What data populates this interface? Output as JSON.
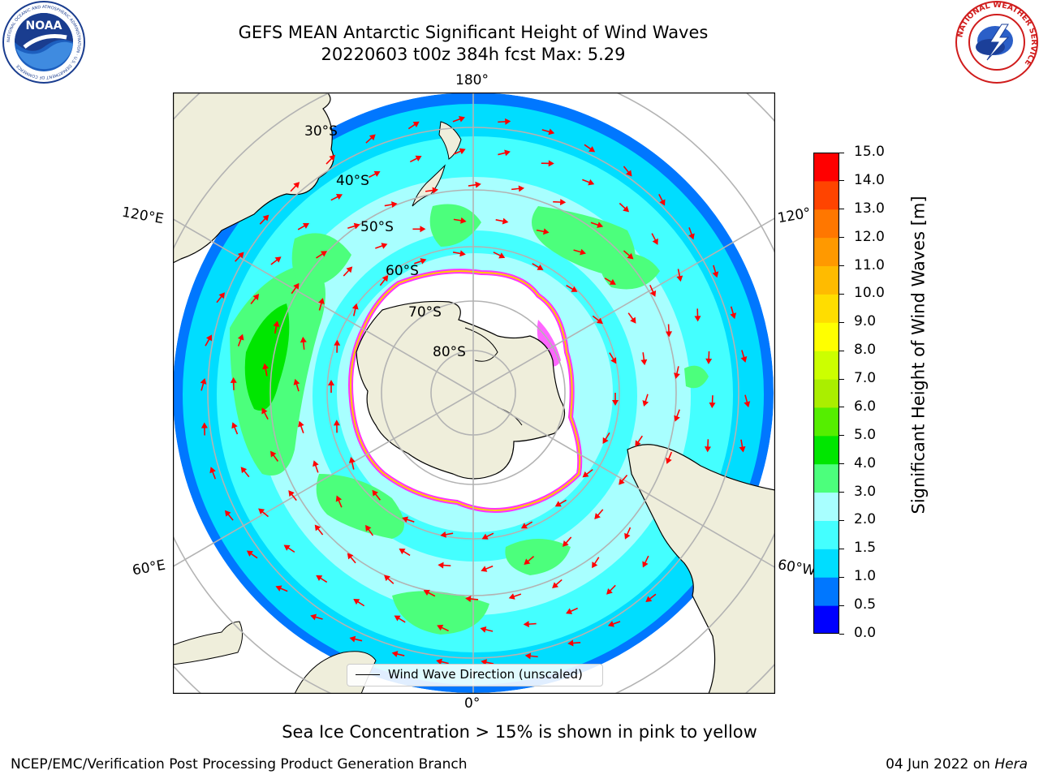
{
  "header": {
    "title_line1": "GEFS MEAN Antarctic Significant Height of Wind Waves",
    "title_line2": "20220603 t00z 384h fcst   Max: 5.29"
  },
  "logos": {
    "noaa_text": "NOAA",
    "noaa_ring_text": "NATIONAL OCEANIC AND ATMOSPHERIC ADMINISTRATION · U.S. DEPARTMENT OF COMMERCE",
    "nws_ring_text": "NATIONAL WEATHER SERVICE"
  },
  "map": {
    "projection": "south-polar stereographic",
    "lon_labels": {
      "top": "180°",
      "left_upper": "120°E",
      "left_lower": "60°E",
      "right_upper": "120°",
      "right_lower": "60°W",
      "bottom": "0°"
    },
    "lat_labels": [
      "30°S",
      "40°S",
      "50°S",
      "60°S",
      "70°S",
      "80°S"
    ],
    "legend": "Wind Wave Direction (unscaled)",
    "arrow_color": "#ff0000",
    "land_color": "#efeedb",
    "sea_ice_note": "Sea Ice Concentration > 15% is shown in pink to yellow"
  },
  "colorbar": {
    "label": "Significant Height of Wind Waves [m]",
    "ticks": [
      "0.0",
      "0.5",
      "1.0",
      "1.5",
      "2.0",
      "3.0",
      "4.0",
      "5.0",
      "6.0",
      "7.0",
      "8.0",
      "9.0",
      "10.0",
      "11.0",
      "12.0",
      "13.0",
      "14.0",
      "15.0"
    ],
    "colors": [
      "#0000ff",
      "#0077ff",
      "#00ddff",
      "#44ffff",
      "#a8ffff",
      "#4cff7c",
      "#00e600",
      "#55ee00",
      "#aaee00",
      "#ccff00",
      "#ffff00",
      "#ffdd00",
      "#ffbb00",
      "#ff9900",
      "#ff7700",
      "#ff4400",
      "#ff0000"
    ]
  },
  "footer": {
    "credit": "NCEP/EMC/Verification Post Processing Product Generation Branch",
    "date": "04 Jun 2022 on",
    "machine": "Hera"
  }
}
